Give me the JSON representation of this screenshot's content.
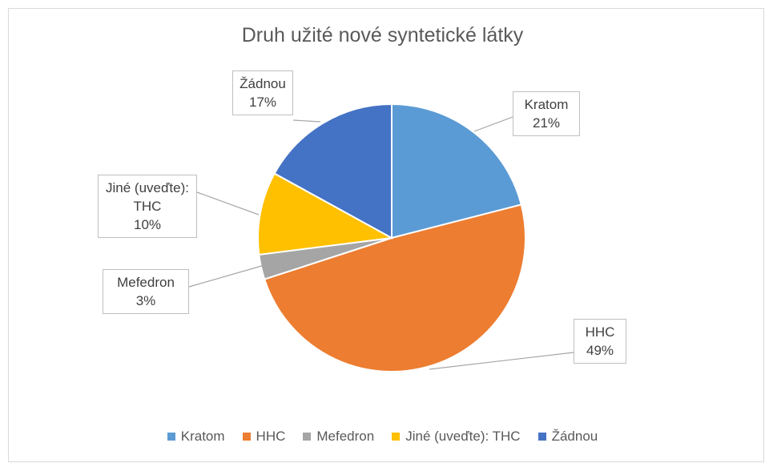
{
  "chart_data": {
    "type": "pie",
    "title": "Druh užité nové syntetické látky",
    "categories": [
      "Kratom",
      "HHC",
      "Mefedron",
      "Jiné (uveďte): THC",
      "Žádnou"
    ],
    "values": [
      21,
      49,
      3,
      10,
      17
    ],
    "value_labels": [
      "21%",
      "49%",
      "3%",
      "10%",
      "17%"
    ],
    "colors": [
      "#5b9bd5",
      "#ed7d31",
      "#a5a5a5",
      "#ffc000",
      "#4472c4"
    ],
    "legend": "bottom"
  }
}
